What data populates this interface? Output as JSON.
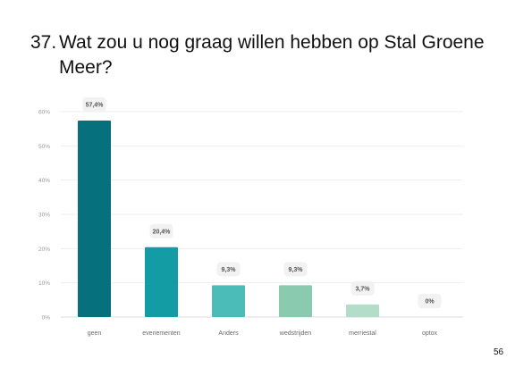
{
  "slide": {
    "number": "37.",
    "question_line1": "Wat zou u nog graag willen hebben op Stal Groene",
    "question_line2": "Meer?",
    "page_number": "56"
  },
  "chart_data": {
    "type": "bar",
    "categories": [
      "geen",
      "evenementen",
      "Anders",
      "wedstrijden",
      "merriestal",
      "optox"
    ],
    "values": [
      57.4,
      20.4,
      9.3,
      9.3,
      3.7,
      0
    ],
    "data_labels": [
      "57,4%",
      "20,4%",
      "9,3%",
      "9,3%",
      "3,7%",
      "0%"
    ],
    "colors": [
      "#06717d",
      "#139ca3",
      "#4cbcb8",
      "#8acbb0",
      "#b3dcc9",
      "#d6ece2"
    ],
    "yticks": [
      0,
      10,
      20,
      30,
      40,
      50,
      60
    ],
    "ytick_labels": [
      "0%",
      "10%",
      "20%",
      "30%",
      "40%",
      "50%",
      "60%"
    ],
    "ylim": [
      0,
      60
    ],
    "grid": true,
    "legend": "none"
  }
}
